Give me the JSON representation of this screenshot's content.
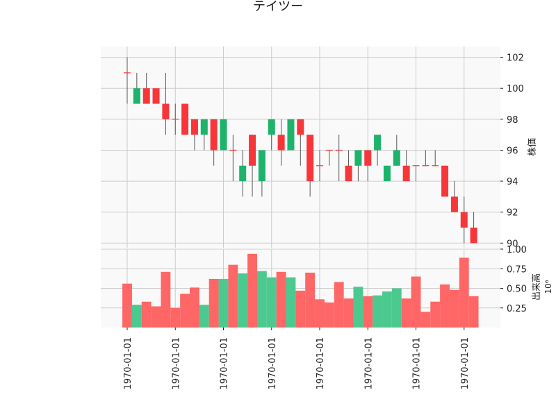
{
  "chart_data": {
    "type": "candlestick",
    "title": "テイツー",
    "colors": {
      "up": "#1db36b",
      "down": "#f7363a",
      "volume_up": "#4cc98f",
      "volume_down": "#ff6666",
      "wick": "#555555",
      "grid": "#cccccc",
      "panel_bg": "#f9f9f9"
    },
    "price_panel": {
      "ylabel": "株価",
      "ylim": [
        89.7,
        102.7
      ],
      "yticks": [
        "90",
        "92",
        "94",
        "96",
        "98",
        "100",
        "102"
      ],
      "grid": true
    },
    "volume_panel": {
      "ylabel": "出来高",
      "exponent_label": "10⁶",
      "ylim": [
        0.0,
        1.0
      ],
      "yticks": [
        "0.25",
        "0.50",
        "0.75",
        "1.00"
      ],
      "grid": true
    },
    "x_tick_labels": [
      "1970-01-01",
      "1970-01-01",
      "1970-01-01",
      "1970-01-01",
      "1970-01-01",
      "1970-01-01",
      "1970-01-01",
      "1970-01-01"
    ],
    "candles": [
      {
        "open": 101,
        "high": 102,
        "low": 99,
        "close": 101,
        "volume": 0.56
      },
      {
        "open": 99,
        "high": 101,
        "low": 99,
        "close": 100,
        "volume": 0.29
      },
      {
        "open": 100,
        "high": 101,
        "low": 99,
        "close": 99,
        "volume": 0.33
      },
      {
        "open": 100,
        "high": 100,
        "low": 99,
        "close": 99,
        "volume": 0.27
      },
      {
        "open": 99,
        "high": 101,
        "low": 97,
        "close": 98,
        "volume": 0.71
      },
      {
        "open": 98,
        "high": 99,
        "low": 97,
        "close": 98,
        "volume": 0.25
      },
      {
        "open": 99,
        "high": 99,
        "low": 97,
        "close": 97,
        "volume": 0.43
      },
      {
        "open": 98,
        "high": 98,
        "low": 96,
        "close": 97,
        "volume": 0.51
      },
      {
        "open": 97,
        "high": 98,
        "low": 96,
        "close": 98,
        "volume": 0.29
      },
      {
        "open": 98,
        "high": 98,
        "low": 95,
        "close": 96,
        "volume": 0.62
      },
      {
        "open": 96,
        "high": 98,
        "low": 96,
        "close": 98,
        "volume": 0.62
      },
      {
        "open": 96,
        "high": 97,
        "low": 94,
        "close": 96,
        "volume": 0.8
      },
      {
        "open": 94,
        "high": 96,
        "low": 93,
        "close": 95,
        "volume": 0.69
      },
      {
        "open": 97,
        "high": 97,
        "low": 93,
        "close": 95,
        "volume": 0.94
      },
      {
        "open": 94,
        "high": 96,
        "low": 93,
        "close": 96,
        "volume": 0.72
      },
      {
        "open": 97,
        "high": 98,
        "low": 96,
        "close": 98,
        "volume": 0.64
      },
      {
        "open": 97,
        "high": 98,
        "low": 95,
        "close": 96,
        "volume": 0.71
      },
      {
        "open": 96,
        "high": 98,
        "low": 96,
        "close": 98,
        "volume": 0.64
      },
      {
        "open": 98,
        "high": 98,
        "low": 95,
        "close": 97,
        "volume": 0.47
      },
      {
        "open": 97,
        "high": 97,
        "low": 93,
        "close": 94,
        "volume": 0.7
      },
      {
        "open": 95,
        "high": 96,
        "low": 94,
        "close": 95,
        "volume": 0.36
      },
      {
        "open": 96,
        "high": 96,
        "low": 95,
        "close": 96,
        "volume": 0.32
      },
      {
        "open": 96,
        "high": 97,
        "low": 94,
        "close": 96,
        "volume": 0.58
      },
      {
        "open": 95,
        "high": 96,
        "low": 94,
        "close": 94,
        "volume": 0.37
      },
      {
        "open": 95,
        "high": 96,
        "low": 94,
        "close": 96,
        "volume": 0.52
      },
      {
        "open": 96,
        "high": 96,
        "low": 94,
        "close": 95,
        "volume": 0.4
      },
      {
        "open": 96,
        "high": 97,
        "low": 95,
        "close": 97,
        "volume": 0.41
      },
      {
        "open": 94,
        "high": 95,
        "low": 94,
        "close": 95,
        "volume": 0.46
      },
      {
        "open": 95,
        "high": 97,
        "low": 95,
        "close": 96,
        "volume": 0.5
      },
      {
        "open": 95,
        "high": 96,
        "low": 94,
        "close": 94,
        "volume": 0.37
      },
      {
        "open": 95,
        "high": 95,
        "low": 94,
        "close": 95,
        "volume": 0.65
      },
      {
        "open": 95,
        "high": 96,
        "low": 95,
        "close": 95,
        "volume": 0.2
      },
      {
        "open": 95,
        "high": 96,
        "low": 95,
        "close": 95,
        "volume": 0.33
      },
      {
        "open": 95,
        "high": 95,
        "low": 93,
        "close": 93,
        "volume": 0.55
      },
      {
        "open": 93,
        "high": 94,
        "low": 92,
        "close": 92,
        "volume": 0.48
      },
      {
        "open": 92,
        "high": 93,
        "low": 90,
        "close": 91,
        "volume": 0.89
      },
      {
        "open": 91,
        "high": 92,
        "low": 90,
        "close": 90,
        "volume": 0.4
      }
    ]
  }
}
